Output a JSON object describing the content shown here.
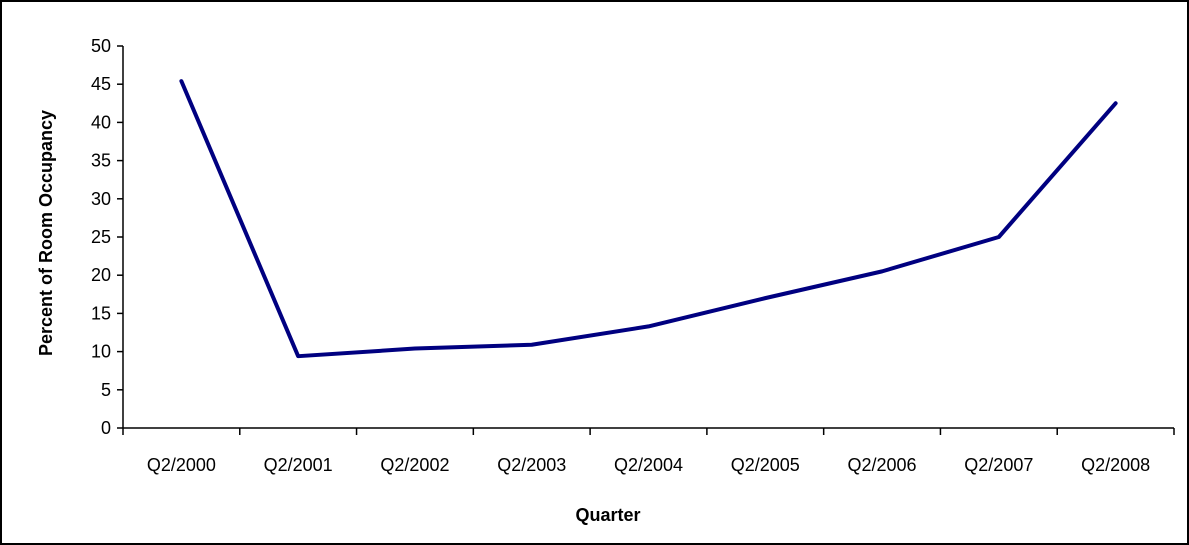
{
  "chart_data": {
    "type": "line",
    "title": "",
    "xlabel": "Quarter",
    "ylabel": "Percent of Room Occupancy",
    "categories": [
      "Q2/2000",
      "Q2/2001",
      "Q2/2002",
      "Q2/2003",
      "Q2/2004",
      "Q2/2005",
      "Q2/2006",
      "Q2/2007",
      "Q2/2008"
    ],
    "series": [
      {
        "values": [
          45.4,
          9.4,
          10.4,
          10.9,
          13.3,
          17.0,
          20.5,
          25.0,
          42.5
        ]
      }
    ],
    "ylim": [
      0,
      50
    ],
    "yticks": [
      0,
      5,
      10,
      15,
      20,
      25,
      30,
      35,
      40,
      45,
      50
    ],
    "grid": false,
    "legend": "none",
    "colors": {
      "line": "#000080",
      "axis": "#000000",
      "frame": "#000000"
    }
  }
}
